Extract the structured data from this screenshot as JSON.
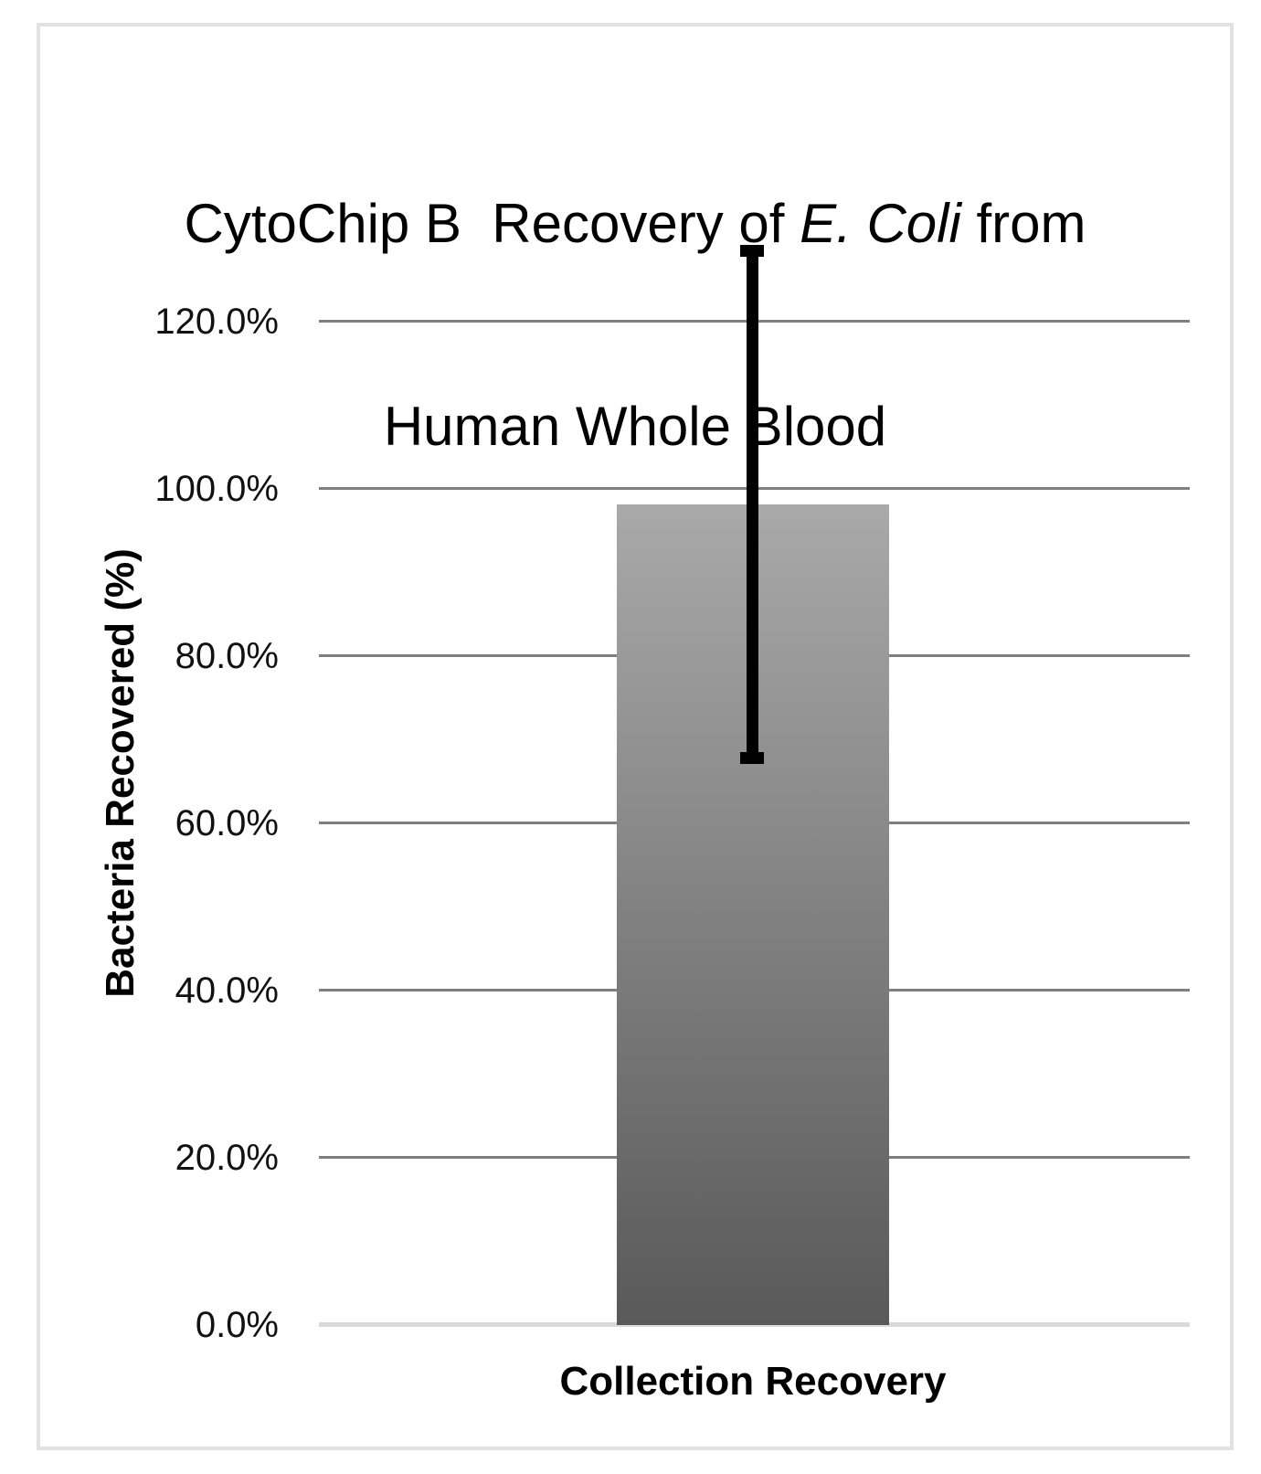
{
  "title": {
    "line1_prefix": "CytoChip B  Recovery of ",
    "line1_italic": "E. Coli",
    "line1_suffix": " from",
    "line2": "Human Whole Blood"
  },
  "chart_data": {
    "type": "bar",
    "title": "CytoChip B Recovery of E. Coli from Human Whole Blood",
    "categories": [
      "Collection Recovery"
    ],
    "values": [
      98.1
    ],
    "error_bars": {
      "plus": [
        30.3
      ],
      "minus": [
        30.3
      ]
    },
    "ylabel": "Bacteria Recovered (%)",
    "xlabel": "",
    "ylim": [
      0,
      130
    ],
    "yticks": [
      0,
      20,
      40,
      60,
      80,
      100,
      120
    ],
    "ytick_labels": [
      "0.0%",
      "20.0%",
      "40.0%",
      "60.0%",
      "80.0%",
      "100.0%",
      "120.0%"
    ],
    "grid": "horizontal-major",
    "legend": false,
    "colors": {
      "bar_gradient_top": "#a9a9a9",
      "bar_gradient_bottom": "#595959",
      "error_bar": "#000000",
      "gridline": "#7f7f7f",
      "zero_axis_line": "#d9d9d9",
      "border": "#e2e2e2",
      "text": "#000000"
    }
  }
}
